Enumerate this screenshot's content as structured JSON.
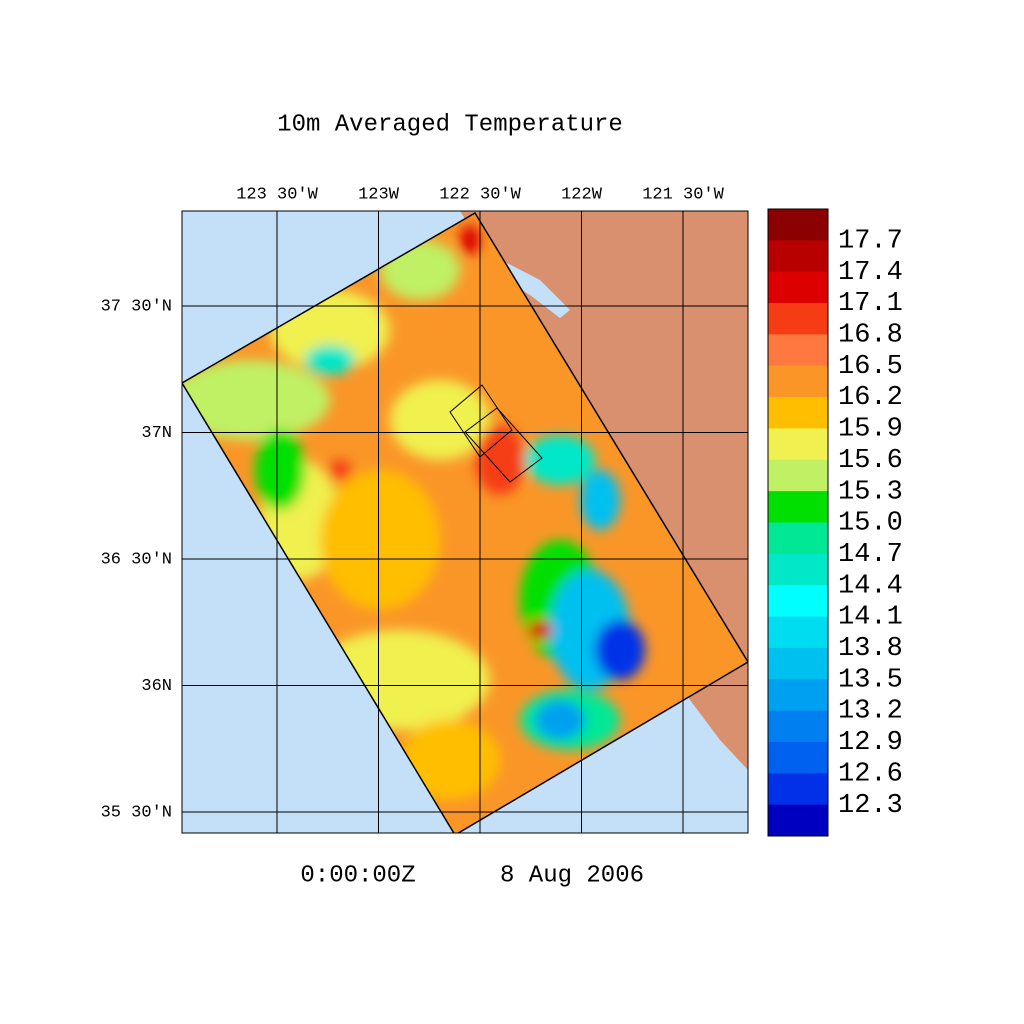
{
  "title": "10m Averaged Temperature",
  "lon_labels": [
    "123 30'W",
    "123W",
    "122 30'W",
    "122W",
    "121 30'W"
  ],
  "lat_labels": [
    "37 30'N",
    "37N",
    "36 30'N",
    "36N",
    "35 30'N"
  ],
  "colorbar": {
    "labels": [
      "17.7",
      "17.4",
      "17.1",
      "16.8",
      "16.5",
      "16.2",
      "15.9",
      "15.6",
      "15.3",
      "15.0",
      "14.7",
      "14.4",
      "14.1",
      "13.8",
      "13.5",
      "13.2",
      "12.9",
      "12.6",
      "12.3"
    ],
    "colors": [
      "#8b0000",
      "#b80000",
      "#dc0000",
      "#f53c14",
      "#ff7840",
      "#fa9628",
      "#ffbe00",
      "#f0f050",
      "#c0f064",
      "#00e000",
      "#00e896",
      "#00e8c8",
      "#00ffff",
      "#00dcf0",
      "#00c0f0",
      "#00a0f0",
      "#0080f0",
      "#0060f0",
      "#0030e8",
      "#0000c0"
    ]
  },
  "time": "0:00:00Z",
  "date": "8 Aug 2006"
}
